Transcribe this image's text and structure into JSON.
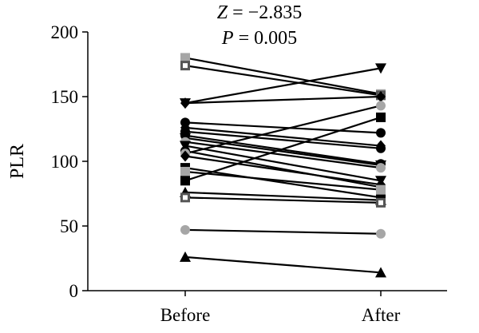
{
  "chart_data": {
    "type": "line",
    "title_stat_label": "Z",
    "title_stat_value": "= −2.835",
    "title_p_label": "P",
    "title_p_value": "= 0.005",
    "ylabel": "PLR",
    "xlabel": "",
    "categories": [
      "Before",
      "After"
    ],
    "ylim": [
      0,
      200
    ],
    "yticks": [
      0,
      50,
      100,
      150,
      200
    ],
    "ytick_labels": [
      "0",
      "50",
      "100",
      "150",
      "200"
    ],
    "grid": false,
    "legend": "none",
    "series": [
      {
        "values": [
          180,
          152
        ],
        "marker": "square",
        "color": "#a6a6a6"
      },
      {
        "values": [
          174,
          151
        ],
        "marker": "square-open",
        "color": "#555555"
      },
      {
        "values": [
          145,
          172
        ],
        "marker": "triangle-down",
        "color": "#000000"
      },
      {
        "values": [
          145,
          150
        ],
        "marker": "diamond",
        "color": "#000000"
      },
      {
        "values": [
          130,
          122
        ],
        "marker": "circle",
        "color": "#000000"
      },
      {
        "values": [
          126,
          112
        ],
        "marker": "diamond",
        "color": "#000000"
      },
      {
        "values": [
          123,
          110
        ],
        "marker": "circle",
        "color": "#000000"
      },
      {
        "values": [
          120,
          98
        ],
        "marker": "circle",
        "color": "#000000"
      },
      {
        "values": [
          118,
          97
        ],
        "marker": "triangle-down",
        "color": "#000000"
      },
      {
        "values": [
          115,
          95
        ],
        "marker": "circle",
        "color": "#a6a6a6"
      },
      {
        "values": [
          112,
          85
        ],
        "marker": "triangle-down",
        "color": "#000000"
      },
      {
        "values": [
          108,
          80
        ],
        "marker": "circle",
        "color": "#000000"
      },
      {
        "values": [
          106,
          143
        ],
        "marker": "circle",
        "color": "#a6a6a6"
      },
      {
        "values": [
          104,
          82
        ],
        "marker": "diamond",
        "color": "#000000"
      },
      {
        "values": [
          95,
          72
        ],
        "marker": "square",
        "color": "#000000"
      },
      {
        "values": [
          92,
          78
        ],
        "marker": "square",
        "color": "#a6a6a6"
      },
      {
        "values": [
          85,
          134
        ],
        "marker": "square",
        "color": "#000000"
      },
      {
        "values": [
          76,
          70
        ],
        "marker": "triangle",
        "color": "#000000"
      },
      {
        "values": [
          72,
          68
        ],
        "marker": "square-open",
        "color": "#555555"
      },
      {
        "values": [
          47,
          44
        ],
        "marker": "circle",
        "color": "#a6a6a6"
      },
      {
        "values": [
          26,
          14
        ],
        "marker": "triangle",
        "color": "#000000"
      }
    ]
  }
}
